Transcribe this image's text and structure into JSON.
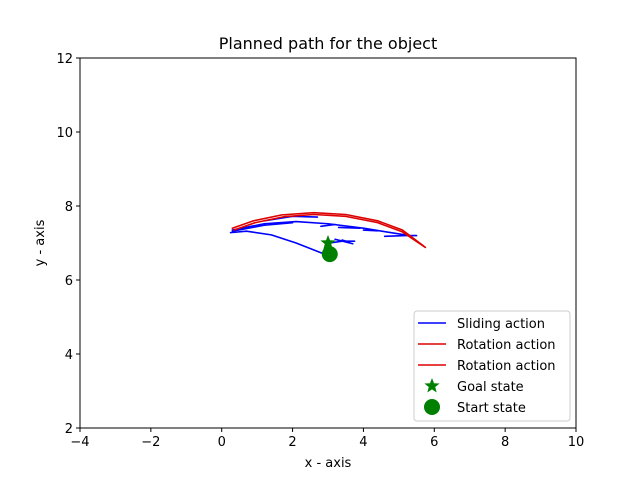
{
  "chart_data": {
    "type": "line",
    "title": "Planned path for the object",
    "xlabel": "x - axis",
    "ylabel": "y - axis",
    "xlim": [
      -4,
      10
    ],
    "ylim": [
      2,
      12
    ],
    "xticks": [
      -4,
      -2,
      0,
      2,
      4,
      6,
      8,
      10
    ],
    "yticks": [
      2,
      4,
      6,
      8,
      10,
      12
    ],
    "xtick_labels": [
      "−4",
      "−2",
      "0",
      "2",
      "4",
      "6",
      "8",
      "10"
    ],
    "ytick_labels": [
      "2",
      "4",
      "6",
      "8",
      "10",
      "12"
    ],
    "grid": false,
    "legend_position": "lower-right",
    "series": [
      {
        "name": "Sliding action",
        "kind": "line",
        "color": "#0000ff",
        "segments": [
          [
            [
              0.25,
              7.28
            ],
            [
              0.7,
              7.32
            ],
            [
              1.4,
              7.22
            ],
            [
              2.1,
              7.0
            ],
            [
              2.9,
              6.7
            ]
          ],
          [
            [
              0.3,
              7.35
            ],
            [
              1.2,
              7.52
            ],
            [
              2.1,
              7.58
            ],
            [
              3.0,
              7.52
            ],
            [
              4.0,
              7.4
            ],
            [
              5.3,
              7.2
            ]
          ],
          [
            [
              0.3,
              7.32
            ],
            [
              1.2,
              7.48
            ],
            [
              2.0,
              7.55
            ]
          ],
          [
            [
              1.2,
              7.6
            ],
            [
              2.0,
              7.72
            ],
            [
              2.7,
              7.7
            ]
          ],
          [
            [
              2.8,
              7.45
            ],
            [
              3.2,
              7.5
            ]
          ],
          [
            [
              3.3,
              7.42
            ],
            [
              3.9,
              7.4
            ]
          ],
          [
            [
              4.0,
              7.35
            ],
            [
              4.4,
              7.33
            ]
          ],
          [
            [
              3.05,
              7.0
            ],
            [
              3.4,
              7.05
            ],
            [
              3.75,
              7.05
            ]
          ],
          [
            [
              3.2,
              7.1
            ],
            [
              3.7,
              6.98
            ]
          ],
          [
            [
              3.4,
              7.08
            ],
            [
              3.6,
              7.02
            ]
          ],
          [
            [
              4.6,
              7.18
            ],
            [
              5.2,
              7.2
            ],
            [
              5.5,
              7.2
            ]
          ]
        ]
      },
      {
        "name": "Rotation action",
        "kind": "line",
        "color": "#dd0000",
        "segments": [
          [
            [
              0.3,
              7.4
            ],
            [
              0.9,
              7.6
            ],
            [
              1.7,
              7.76
            ],
            [
              2.6,
              7.82
            ],
            [
              3.5,
              7.77
            ],
            [
              4.4,
              7.6
            ],
            [
              5.1,
              7.35
            ],
            [
              5.7,
              6.92
            ]
          ]
        ]
      },
      {
        "name": "Rotation action",
        "kind": "line",
        "color": "#dd0000",
        "segments": [
          [
            [
              0.35,
              7.35
            ],
            [
              0.95,
              7.55
            ],
            [
              1.75,
              7.71
            ],
            [
              2.6,
              7.77
            ],
            [
              3.5,
              7.72
            ],
            [
              4.4,
              7.55
            ],
            [
              5.1,
              7.3
            ],
            [
              5.75,
              6.88
            ]
          ]
        ]
      },
      {
        "name": "Goal state",
        "kind": "marker",
        "marker": "star",
        "color": "#008000",
        "points": [
          [
            3.0,
            7.0
          ]
        ]
      },
      {
        "name": "Start state",
        "kind": "marker",
        "marker": "circle",
        "color": "#008000",
        "points": [
          [
            3.05,
            6.7
          ]
        ]
      }
    ]
  }
}
